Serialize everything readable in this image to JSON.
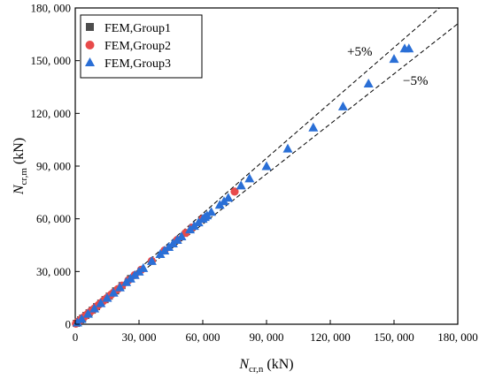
{
  "chart_data": {
    "type": "scatter",
    "xlabel": "N",
    "xlabel_sub": "cr,n",
    "xlabel_unit": " (kN)",
    "ylabel": "N",
    "ylabel_sub": "cr,m",
    "ylabel_unit": " (kN)",
    "xlim": [
      0,
      180000
    ],
    "ylim": [
      0,
      180000
    ],
    "x_ticks": [
      0,
      30000,
      60000,
      90000,
      120000,
      150000,
      180000
    ],
    "y_ticks": [
      0,
      30000,
      60000,
      90000,
      120000,
      150000,
      180000
    ],
    "x_tick_labels": [
      "0",
      "30, 000",
      "60, 000",
      "90, 000",
      "120, 000",
      "150, 000",
      "180, 000"
    ],
    "y_tick_labels": [
      "0",
      "30, 000",
      "60, 000",
      "90, 000",
      "120, 000",
      "150, 000",
      "180, 000"
    ],
    "grid": false,
    "legend_position": "top-left",
    "reference_lines": [
      {
        "label": "+5%",
        "slope": 1.05,
        "style": "dashed"
      },
      {
        "label": "−5%",
        "slope": 0.95,
        "style": "dashed"
      }
    ],
    "series": [
      {
        "name": "FEM,Group1",
        "marker": "square",
        "color": "#4d4d4d",
        "points": [
          [
            500,
            500
          ],
          [
            1500,
            1500
          ],
          [
            2500,
            2500
          ],
          [
            3500,
            3500
          ],
          [
            5000,
            5000
          ],
          [
            6500,
            6500
          ],
          [
            8000,
            8000
          ],
          [
            10000,
            10000
          ],
          [
            12000,
            12000
          ],
          [
            14000,
            14000
          ],
          [
            16000,
            16000
          ],
          [
            19000,
            19000
          ],
          [
            22000,
            22000
          ],
          [
            26000,
            26000
          ]
        ]
      },
      {
        "name": "FEM,Group2",
        "marker": "circle",
        "color": "#e84a4a",
        "points": [
          [
            300,
            300
          ],
          [
            800,
            800
          ],
          [
            1200,
            1200
          ],
          [
            1800,
            1800
          ],
          [
            2300,
            2300
          ],
          [
            3000,
            3000
          ],
          [
            3600,
            3600
          ],
          [
            4200,
            4200
          ],
          [
            5000,
            5000
          ],
          [
            5800,
            5800
          ],
          [
            6600,
            6600
          ],
          [
            7400,
            7400
          ],
          [
            8200,
            8200
          ],
          [
            9000,
            9000
          ],
          [
            10000,
            10000
          ],
          [
            11000,
            11000
          ],
          [
            12000,
            12000
          ],
          [
            13000,
            13000
          ],
          [
            14000,
            14000
          ],
          [
            15000,
            15000
          ],
          [
            16000,
            16000
          ],
          [
            17000,
            17000
          ],
          [
            18000,
            18000
          ],
          [
            20000,
            20000
          ],
          [
            22000,
            22000
          ],
          [
            25000,
            25000
          ],
          [
            28000,
            28000
          ],
          [
            31000,
            31000
          ],
          [
            36000,
            36000
          ],
          [
            42000,
            42000
          ],
          [
            48000,
            48000
          ],
          [
            52000,
            52000
          ],
          [
            55000,
            55000
          ],
          [
            60000,
            60000
          ],
          [
            75000,
            75500
          ]
        ]
      },
      {
        "name": "FEM,Group3",
        "marker": "triangle",
        "color": "#2a6fd6",
        "points": [
          [
            1000,
            1000
          ],
          [
            3000,
            3000
          ],
          [
            6000,
            6000
          ],
          [
            9000,
            9000
          ],
          [
            12000,
            12000
          ],
          [
            15000,
            15000
          ],
          [
            18000,
            18000
          ],
          [
            21000,
            21000
          ],
          [
            24000,
            24000
          ],
          [
            26000,
            26000
          ],
          [
            28000,
            28000
          ],
          [
            30000,
            30000
          ],
          [
            32000,
            32000
          ],
          [
            36000,
            36000
          ],
          [
            40000,
            40000
          ],
          [
            42000,
            42000
          ],
          [
            44000,
            44000
          ],
          [
            46000,
            46000
          ],
          [
            48000,
            48000
          ],
          [
            50000,
            50000
          ],
          [
            54000,
            54000
          ],
          [
            56000,
            56000
          ],
          [
            58000,
            58000
          ],
          [
            60000,
            60000
          ],
          [
            61000,
            61000
          ],
          [
            62000,
            62000
          ],
          [
            64000,
            64000
          ],
          [
            68000,
            68000
          ],
          [
            70000,
            70000
          ],
          [
            72000,
            72000
          ],
          [
            78000,
            79000
          ],
          [
            82000,
            83000
          ],
          [
            90000,
            90000
          ],
          [
            100000,
            100000
          ],
          [
            112000,
            112000
          ],
          [
            126000,
            124000
          ],
          [
            138000,
            137000
          ],
          [
            150000,
            151000
          ],
          [
            155000,
            157000
          ],
          [
            157000,
            157000
          ]
        ]
      }
    ]
  }
}
